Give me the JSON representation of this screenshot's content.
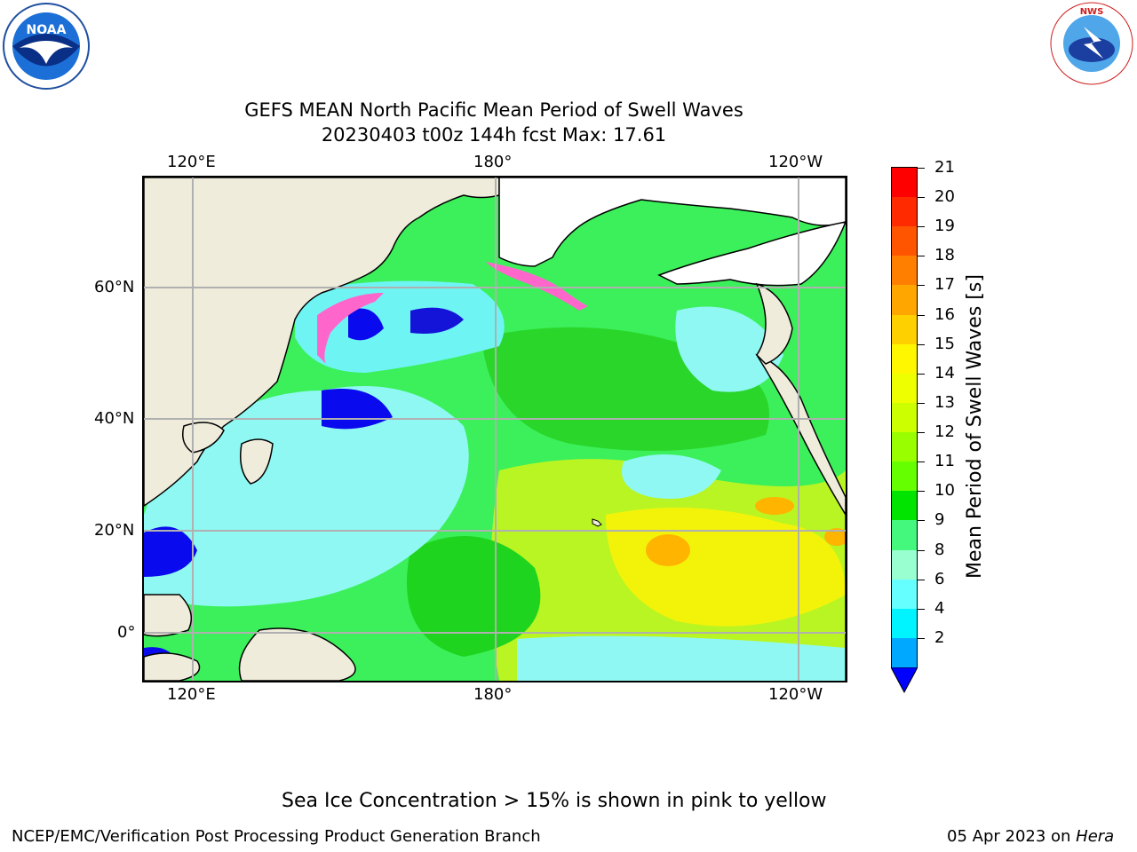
{
  "header": {
    "title_line1": "GEFS MEAN North Pacific Mean Period of Swell Waves",
    "title_line2": "20230403 t00z 144h fcst   Max: 17.61"
  },
  "logos": {
    "left": {
      "text": "NOAA",
      "icon": "noaa-logo"
    },
    "right": {
      "text": "NATIONAL WEATHER SERVICE",
      "icon": "nws-logo"
    }
  },
  "map": {
    "lon_labels_top": [
      "120°E",
      "180°",
      "120°W"
    ],
    "lon_labels_bottom": [
      "120°E",
      "180°",
      "120°W"
    ],
    "lat_labels": [
      "60°N",
      "40°N",
      "20°N",
      "0°"
    ],
    "land_color": "#efecdc",
    "coast_color": "#000000",
    "grid_color": "#b0b0b0"
  },
  "colorbar": {
    "label": "Mean Period of Swell Waves [s]",
    "ticks": [
      "21",
      "20",
      "19",
      "18",
      "17",
      "16",
      "15",
      "14",
      "13",
      "12",
      "11",
      "10",
      "9",
      "8",
      "6",
      "4",
      "2"
    ],
    "colors_top_to_bottom": [
      "#ff0000",
      "#ff2a00",
      "#ff5500",
      "#ff7f00",
      "#ffa600",
      "#ffd000",
      "#fff700",
      "#eeff00",
      "#ccff00",
      "#99ff00",
      "#66ff00",
      "#00e400",
      "#44f77d",
      "#99ffd0",
      "#66ffff",
      "#00f4ff",
      "#00a8ff"
    ],
    "under_color": "#0000ff"
  },
  "note": "Sea Ice Concentration > 15% is shown in pink to yellow",
  "footer": {
    "left": "NCEP/EMC/Verification Post Processing Product Generation Branch",
    "right_date": "05 Apr 2023 on ",
    "right_host": "Hera"
  }
}
